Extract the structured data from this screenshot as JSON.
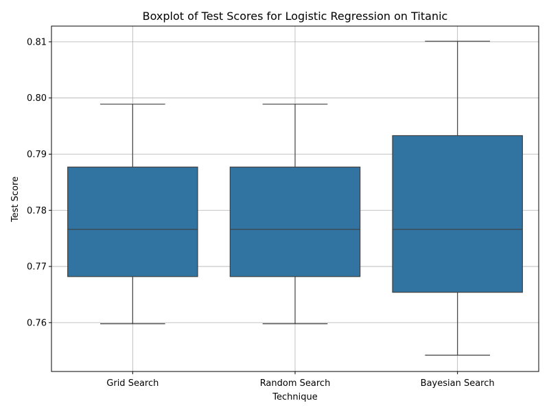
{
  "chart_data": {
    "type": "box",
    "title": "Boxplot of Test Scores for Logistic Regression on Titanic",
    "xlabel": "Technique",
    "ylabel": "Test Score",
    "categories": [
      "Grid Search",
      "Random Search",
      "Bayesian Search"
    ],
    "boxes": [
      {
        "category": "Grid Search",
        "min": 0.7598,
        "q1": 0.7682,
        "median": 0.7766,
        "q3": 0.7877,
        "max": 0.7989
      },
      {
        "category": "Random Search",
        "min": 0.7598,
        "q1": 0.7682,
        "median": 0.7766,
        "q3": 0.7877,
        "max": 0.7989
      },
      {
        "category": "Bayesian Search",
        "min": 0.7542,
        "q1": 0.7654,
        "median": 0.7766,
        "q3": 0.7933,
        "max": 0.8101
      }
    ],
    "yticks": [
      "0.76",
      "0.77",
      "0.78",
      "0.79",
      "0.80",
      "0.81"
    ],
    "ylim": [
      0.7513,
      0.8128
    ],
    "grid": true,
    "colors": {
      "box_fill": "#3274a1",
      "box_edge": "#3f3f3f",
      "grid": "#b0b0b0",
      "axes": "#000000"
    }
  }
}
